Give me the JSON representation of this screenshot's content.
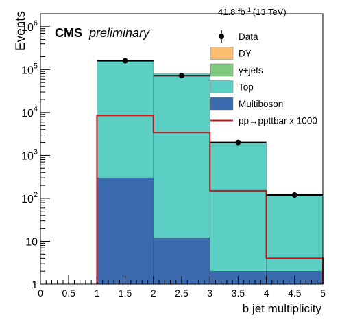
{
  "chart_data": {
    "type": "bar",
    "subtype": "stacked-histogram",
    "title": "",
    "lumi_label": "41.8 fb",
    "lumi_sup": "-1",
    "lumi_energy": "(13 TeV)",
    "cms_label": "CMS",
    "cms_extra": "preliminary",
    "xlabel": "b jet multiplicity",
    "ylabel": "Events",
    "xlim": [
      0,
      5
    ],
    "ylim": [
      1,
      2000000
    ],
    "yscale": "log",
    "grid": false,
    "legend_position": "top-right",
    "x_tick_labels": [
      "0",
      "0.5",
      "1",
      "1.5",
      "2",
      "2.5",
      "3",
      "3.5",
      "4",
      "4.5",
      "5"
    ],
    "y_tick_labels": [
      {
        "base": "1",
        "exp": "",
        "value": 1
      },
      {
        "base": "10",
        "exp": "",
        "value": 10
      },
      {
        "base": "10",
        "exp": "2",
        "value": 100
      },
      {
        "base": "10",
        "exp": "3",
        "value": 1000
      },
      {
        "base": "10",
        "exp": "4",
        "value": 10000
      },
      {
        "base": "10",
        "exp": "5",
        "value": 100000
      },
      {
        "base": "10",
        "exp": "6",
        "value": 1000000
      }
    ],
    "bins": [
      [
        1,
        2
      ],
      [
        2,
        3
      ],
      [
        3,
        4
      ],
      [
        4,
        5
      ]
    ],
    "stack": [
      {
        "name": "Multiboson",
        "color": "#3b6aaf",
        "values": [
          300,
          11,
          1,
          1
        ]
      },
      {
        "name": "Top",
        "color": "#5bcfc4",
        "values": [
          160000,
          80000,
          2000,
          120
        ]
      },
      {
        "name": "γ+jets",
        "color": "#7fc97f",
        "values": [
          0,
          0,
          0,
          0
        ]
      },
      {
        "name": "DY",
        "color": "#fdbf6f",
        "values": [
          0,
          0,
          0,
          0
        ]
      }
    ],
    "signal": {
      "name": "pp→ppttbar x 1000",
      "color": "#cc1111",
      "values": [
        8500,
        3400,
        150,
        4
      ]
    },
    "data": {
      "name": "Data",
      "x": [
        0.5,
        1.5,
        2.5,
        3.5,
        4.5
      ],
      "y": [
        0,
        160000,
        72000,
        2000,
        120
      ]
    },
    "legend": [
      {
        "label": "Data",
        "style": "marker"
      },
      {
        "label": "DY",
        "style": "fill",
        "color": "#fdbf6f"
      },
      {
        "label": "γ+jets",
        "style": "fill",
        "color": "#7fc97f"
      },
      {
        "label": "Top",
        "style": "fill",
        "color": "#5bcfc4"
      },
      {
        "label": "Multiboson",
        "style": "fill",
        "color": "#3b6aaf"
      },
      {
        "label": "pp→ppttbar x 1000",
        "style": "line",
        "color": "#cc1111"
      }
    ]
  }
}
